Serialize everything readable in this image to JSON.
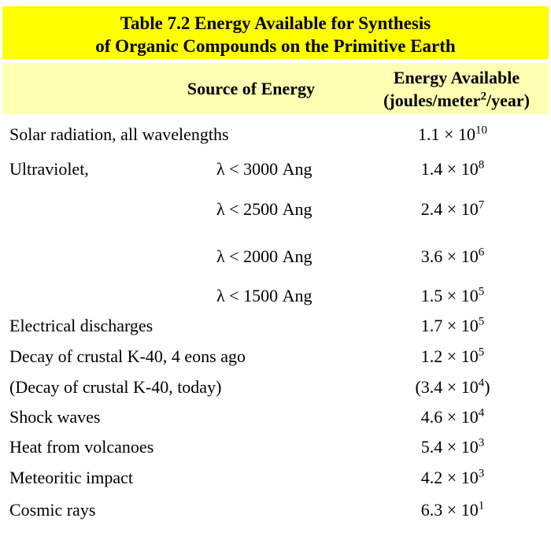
{
  "title": {
    "line1": "Table 7.2 Energy Available for Synthesis",
    "line2": "of Organic Compounds on the Primitive Earth"
  },
  "columns": {
    "source_label": "Source of Energy",
    "energy_label": "Energy Available",
    "energy_unit_prefix": "(joules/meter",
    "energy_unit_sup": "2",
    "energy_unit_suffix": "/year)"
  },
  "colors": {
    "title_bg": "#ffff00",
    "header_bg": "#ffffb3",
    "text": "#000000",
    "page_bg": "#ffffff"
  },
  "rows": [
    {
      "source": "Solar radiation, all wavelengths",
      "detail": "",
      "value_prefix": "1.1 × 10",
      "value_exp": "10",
      "value_suffix": ""
    },
    {
      "source": "Ultraviolet,",
      "detail": "λ < 3000 Ang",
      "value_prefix": "1.4 × 10",
      "value_exp": "8",
      "value_suffix": ""
    },
    {
      "source": "",
      "detail": "λ < 2500 Ang",
      "value_prefix": "2.4 × 10",
      "value_exp": "7",
      "value_suffix": ""
    },
    {
      "source": "",
      "detail": "λ < 2000 Ang",
      "value_prefix": "3.6 × 10",
      "value_exp": "6",
      "value_suffix": ""
    },
    {
      "source": "",
      "detail": "λ < 1500 Ang",
      "value_prefix": "1.5 × 10",
      "value_exp": "5",
      "value_suffix": ""
    },
    {
      "source": "Electrical discharges",
      "detail": "",
      "value_prefix": "1.7 × 10",
      "value_exp": "5",
      "value_suffix": ""
    },
    {
      "source": "Decay of crustal K-40, 4 eons ago",
      "detail": "",
      "value_prefix": "1.2 × 10",
      "value_exp": "5",
      "value_suffix": ""
    },
    {
      "source": "(Decay of crustal K-40, today)",
      "detail": "",
      "value_prefix": "(3.4 × 10",
      "value_exp": "4",
      "value_suffix": ")"
    },
    {
      "source": "Shock waves",
      "detail": "",
      "value_prefix": "4.6 × 10",
      "value_exp": "4",
      "value_suffix": ""
    },
    {
      "source": "Heat from volcanoes",
      "detail": "",
      "value_prefix": "5.4 × 10",
      "value_exp": "3",
      "value_suffix": ""
    },
    {
      "source": "Meteoritic impact",
      "detail": "",
      "value_prefix": "4.2 × 10",
      "value_exp": "3",
      "value_suffix": ""
    },
    {
      "source": "Cosmic rays",
      "detail": "",
      "value_prefix": "6.3 × 10",
      "value_exp": "1",
      "value_suffix": ""
    }
  ]
}
